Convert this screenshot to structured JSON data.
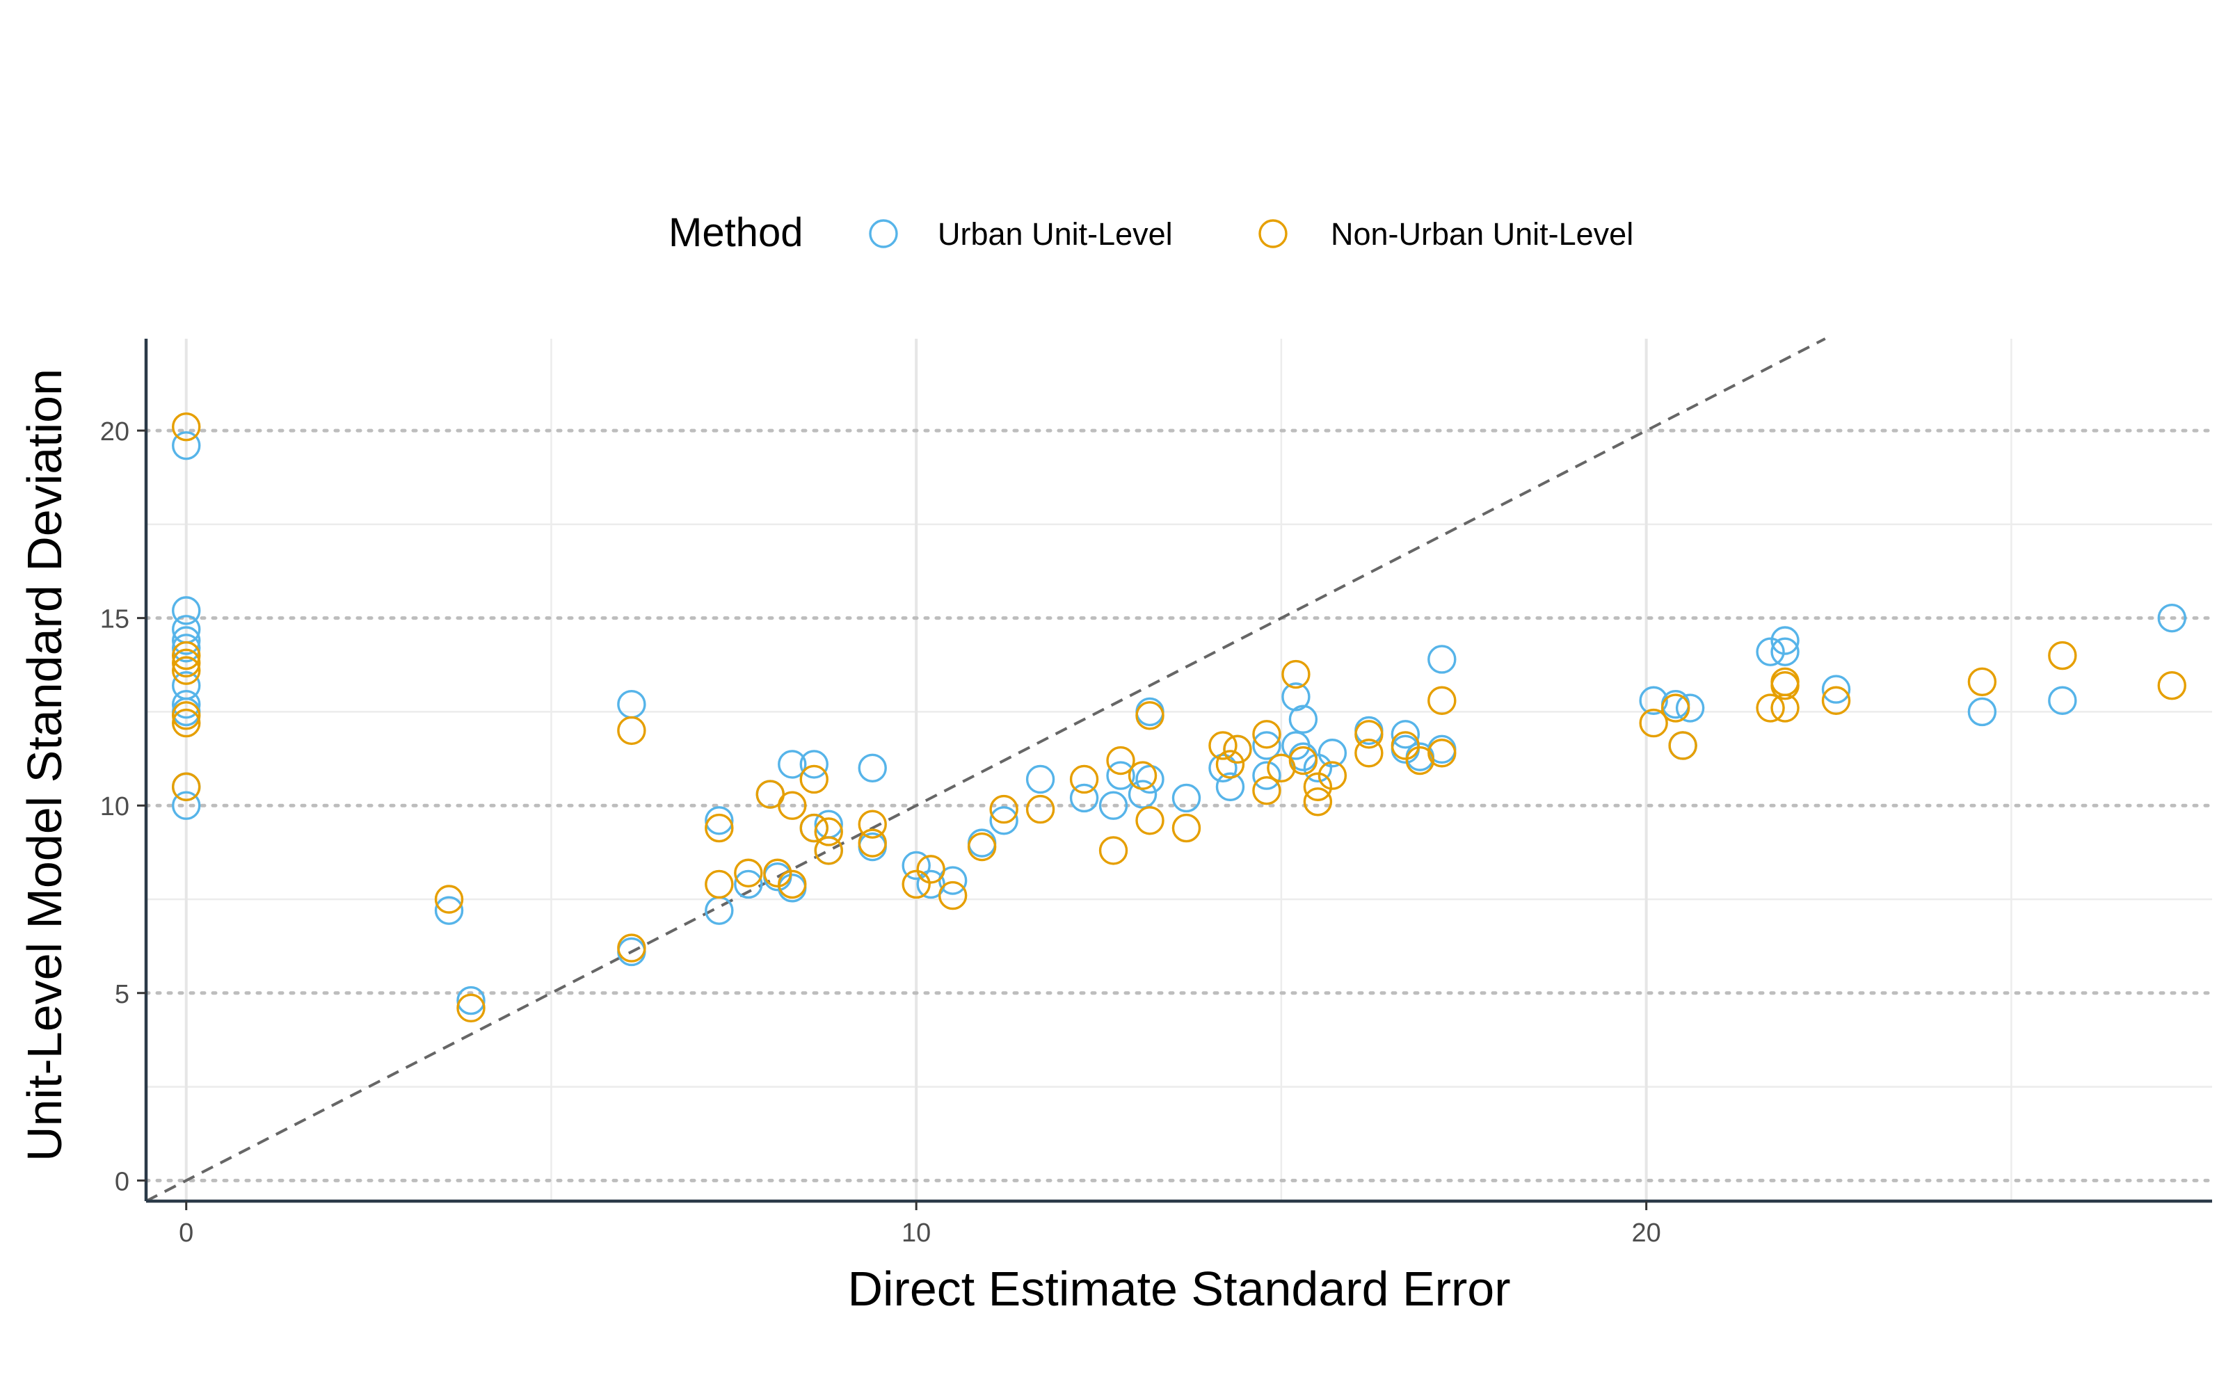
{
  "chart_data": {
    "type": "scatter",
    "title": "",
    "xlabel": "Direct Estimate Standard Error",
    "ylabel": "Unit-Level Model Standard Deviation",
    "xlim": [
      -0.55,
      27.75
    ],
    "ylim": [
      -0.55,
      22.45
    ],
    "x_ticks": [
      0,
      10,
      20
    ],
    "x_tick_labels": [
      "0",
      "10",
      "20"
    ],
    "y_ticks": [
      0,
      5,
      10,
      15,
      20
    ],
    "y_tick_labels": [
      "0",
      "5",
      "10",
      "15",
      "20"
    ],
    "x_minor_grid": [
      5,
      15,
      25
    ],
    "y_minor_grid": [
      2.5,
      7.5,
      12.5,
      17.5
    ],
    "grid": true,
    "reference_line": {
      "type": "identity",
      "style": "dashed",
      "color": "#666666"
    },
    "legend": {
      "position": "top",
      "title": "Method",
      "entries": [
        "Urban Unit-Level",
        "Non-Urban Unit-Level"
      ]
    },
    "series": [
      {
        "name": "Urban Unit-Level",
        "color": "#56B4E9",
        "marker": "open-circle",
        "points": [
          [
            0,
            19.6
          ],
          [
            0,
            15.2
          ],
          [
            0,
            14.7
          ],
          [
            0,
            14.4
          ],
          [
            0,
            14.2
          ],
          [
            0,
            13.2
          ],
          [
            0,
            12.7
          ],
          [
            0,
            12.5
          ],
          [
            0,
            10.5
          ],
          [
            0,
            10.0
          ],
          [
            3.6,
            7.2
          ],
          [
            3.9,
            4.8
          ],
          [
            6.1,
            6.1
          ],
          [
            6.1,
            12.7
          ],
          [
            7.3,
            9.6
          ],
          [
            7.3,
            7.2
          ],
          [
            7.7,
            7.9
          ],
          [
            8.0,
            10.3
          ],
          [
            8.1,
            8.1
          ],
          [
            8.3,
            11.1
          ],
          [
            8.3,
            7.8
          ],
          [
            8.6,
            11.1
          ],
          [
            8.6,
            9.4
          ],
          [
            8.8,
            9.5
          ],
          [
            8.8,
            8.8
          ],
          [
            9.4,
            8.9
          ],
          [
            9.4,
            11.0
          ],
          [
            10.0,
            8.4
          ],
          [
            10.2,
            7.9
          ],
          [
            10.5,
            8.0
          ],
          [
            10.9,
            9.0
          ],
          [
            11.2,
            9.6
          ],
          [
            11.7,
            10.7
          ],
          [
            12.3,
            10.2
          ],
          [
            12.7,
            10.0
          ],
          [
            12.8,
            10.8
          ],
          [
            13.1,
            10.3
          ],
          [
            13.2,
            12.5
          ],
          [
            13.2,
            10.7
          ],
          [
            13.7,
            10.2
          ],
          [
            14.2,
            11.0
          ],
          [
            14.3,
            10.5
          ],
          [
            14.4,
            11.5
          ],
          [
            14.8,
            10.8
          ],
          [
            14.8,
            11.6
          ],
          [
            15.2,
            11.6
          ],
          [
            15.2,
            12.9
          ],
          [
            15.3,
            12.3
          ],
          [
            15.3,
            11.3
          ],
          [
            15.5,
            11.0
          ],
          [
            15.7,
            11.4
          ],
          [
            16.2,
            12.0
          ],
          [
            16.7,
            11.9
          ],
          [
            16.7,
            11.5
          ],
          [
            16.9,
            11.3
          ],
          [
            17.2,
            11.5
          ],
          [
            17.2,
            13.9
          ],
          [
            20.1,
            12.8
          ],
          [
            20.4,
            12.7
          ],
          [
            20.5,
            11.6
          ],
          [
            20.6,
            12.6
          ],
          [
            21.7,
            14.1
          ],
          [
            21.9,
            14.4
          ],
          [
            21.9,
            14.1
          ],
          [
            22.6,
            13.1
          ],
          [
            24.6,
            12.5
          ],
          [
            25.7,
            12.8
          ],
          [
            27.2,
            15.0
          ]
        ]
      },
      {
        "name": "Non-Urban Unit-Level",
        "color": "#E69F00",
        "marker": "open-circle",
        "points": [
          [
            0,
            20.1
          ],
          [
            0,
            14.0
          ],
          [
            0,
            13.8
          ],
          [
            0,
            13.6
          ],
          [
            0,
            12.4
          ],
          [
            0,
            12.2
          ],
          [
            0,
            10.5
          ],
          [
            3.6,
            7.5
          ],
          [
            3.9,
            4.6
          ],
          [
            6.1,
            6.2
          ],
          [
            6.1,
            12.0
          ],
          [
            7.3,
            9.4
          ],
          [
            7.3,
            7.9
          ],
          [
            7.7,
            8.2
          ],
          [
            8.0,
            10.3
          ],
          [
            8.1,
            8.2
          ],
          [
            8.3,
            10.0
          ],
          [
            8.3,
            7.9
          ],
          [
            8.6,
            10.7
          ],
          [
            8.6,
            9.4
          ],
          [
            8.8,
            9.3
          ],
          [
            8.8,
            8.8
          ],
          [
            9.4,
            9.5
          ],
          [
            9.4,
            9.0
          ],
          [
            10.0,
            7.9
          ],
          [
            10.2,
            8.3
          ],
          [
            10.5,
            7.6
          ],
          [
            10.9,
            8.9
          ],
          [
            11.2,
            9.9
          ],
          [
            11.7,
            9.9
          ],
          [
            12.3,
            10.7
          ],
          [
            12.7,
            8.8
          ],
          [
            12.8,
            11.2
          ],
          [
            13.1,
            10.8
          ],
          [
            13.2,
            12.4
          ],
          [
            13.2,
            9.6
          ],
          [
            13.7,
            9.4
          ],
          [
            14.2,
            11.6
          ],
          [
            14.3,
            11.1
          ],
          [
            14.4,
            11.5
          ],
          [
            14.8,
            11.9
          ],
          [
            14.8,
            10.4
          ],
          [
            15.0,
            11.0
          ],
          [
            15.2,
            13.5
          ],
          [
            15.3,
            11.2
          ],
          [
            15.5,
            10.5
          ],
          [
            15.5,
            10.1
          ],
          [
            15.7,
            10.8
          ],
          [
            16.2,
            11.9
          ],
          [
            16.2,
            11.4
          ],
          [
            16.7,
            11.6
          ],
          [
            16.9,
            11.2
          ],
          [
            17.2,
            11.4
          ],
          [
            17.2,
            12.8
          ],
          [
            20.1,
            12.2
          ],
          [
            20.4,
            12.6
          ],
          [
            20.5,
            11.6
          ],
          [
            21.7,
            12.6
          ],
          [
            21.9,
            13.3
          ],
          [
            21.9,
            13.2
          ],
          [
            21.9,
            12.6
          ],
          [
            22.6,
            12.8
          ],
          [
            24.6,
            13.3
          ],
          [
            25.7,
            14.0
          ],
          [
            27.2,
            13.2
          ]
        ]
      }
    ]
  }
}
